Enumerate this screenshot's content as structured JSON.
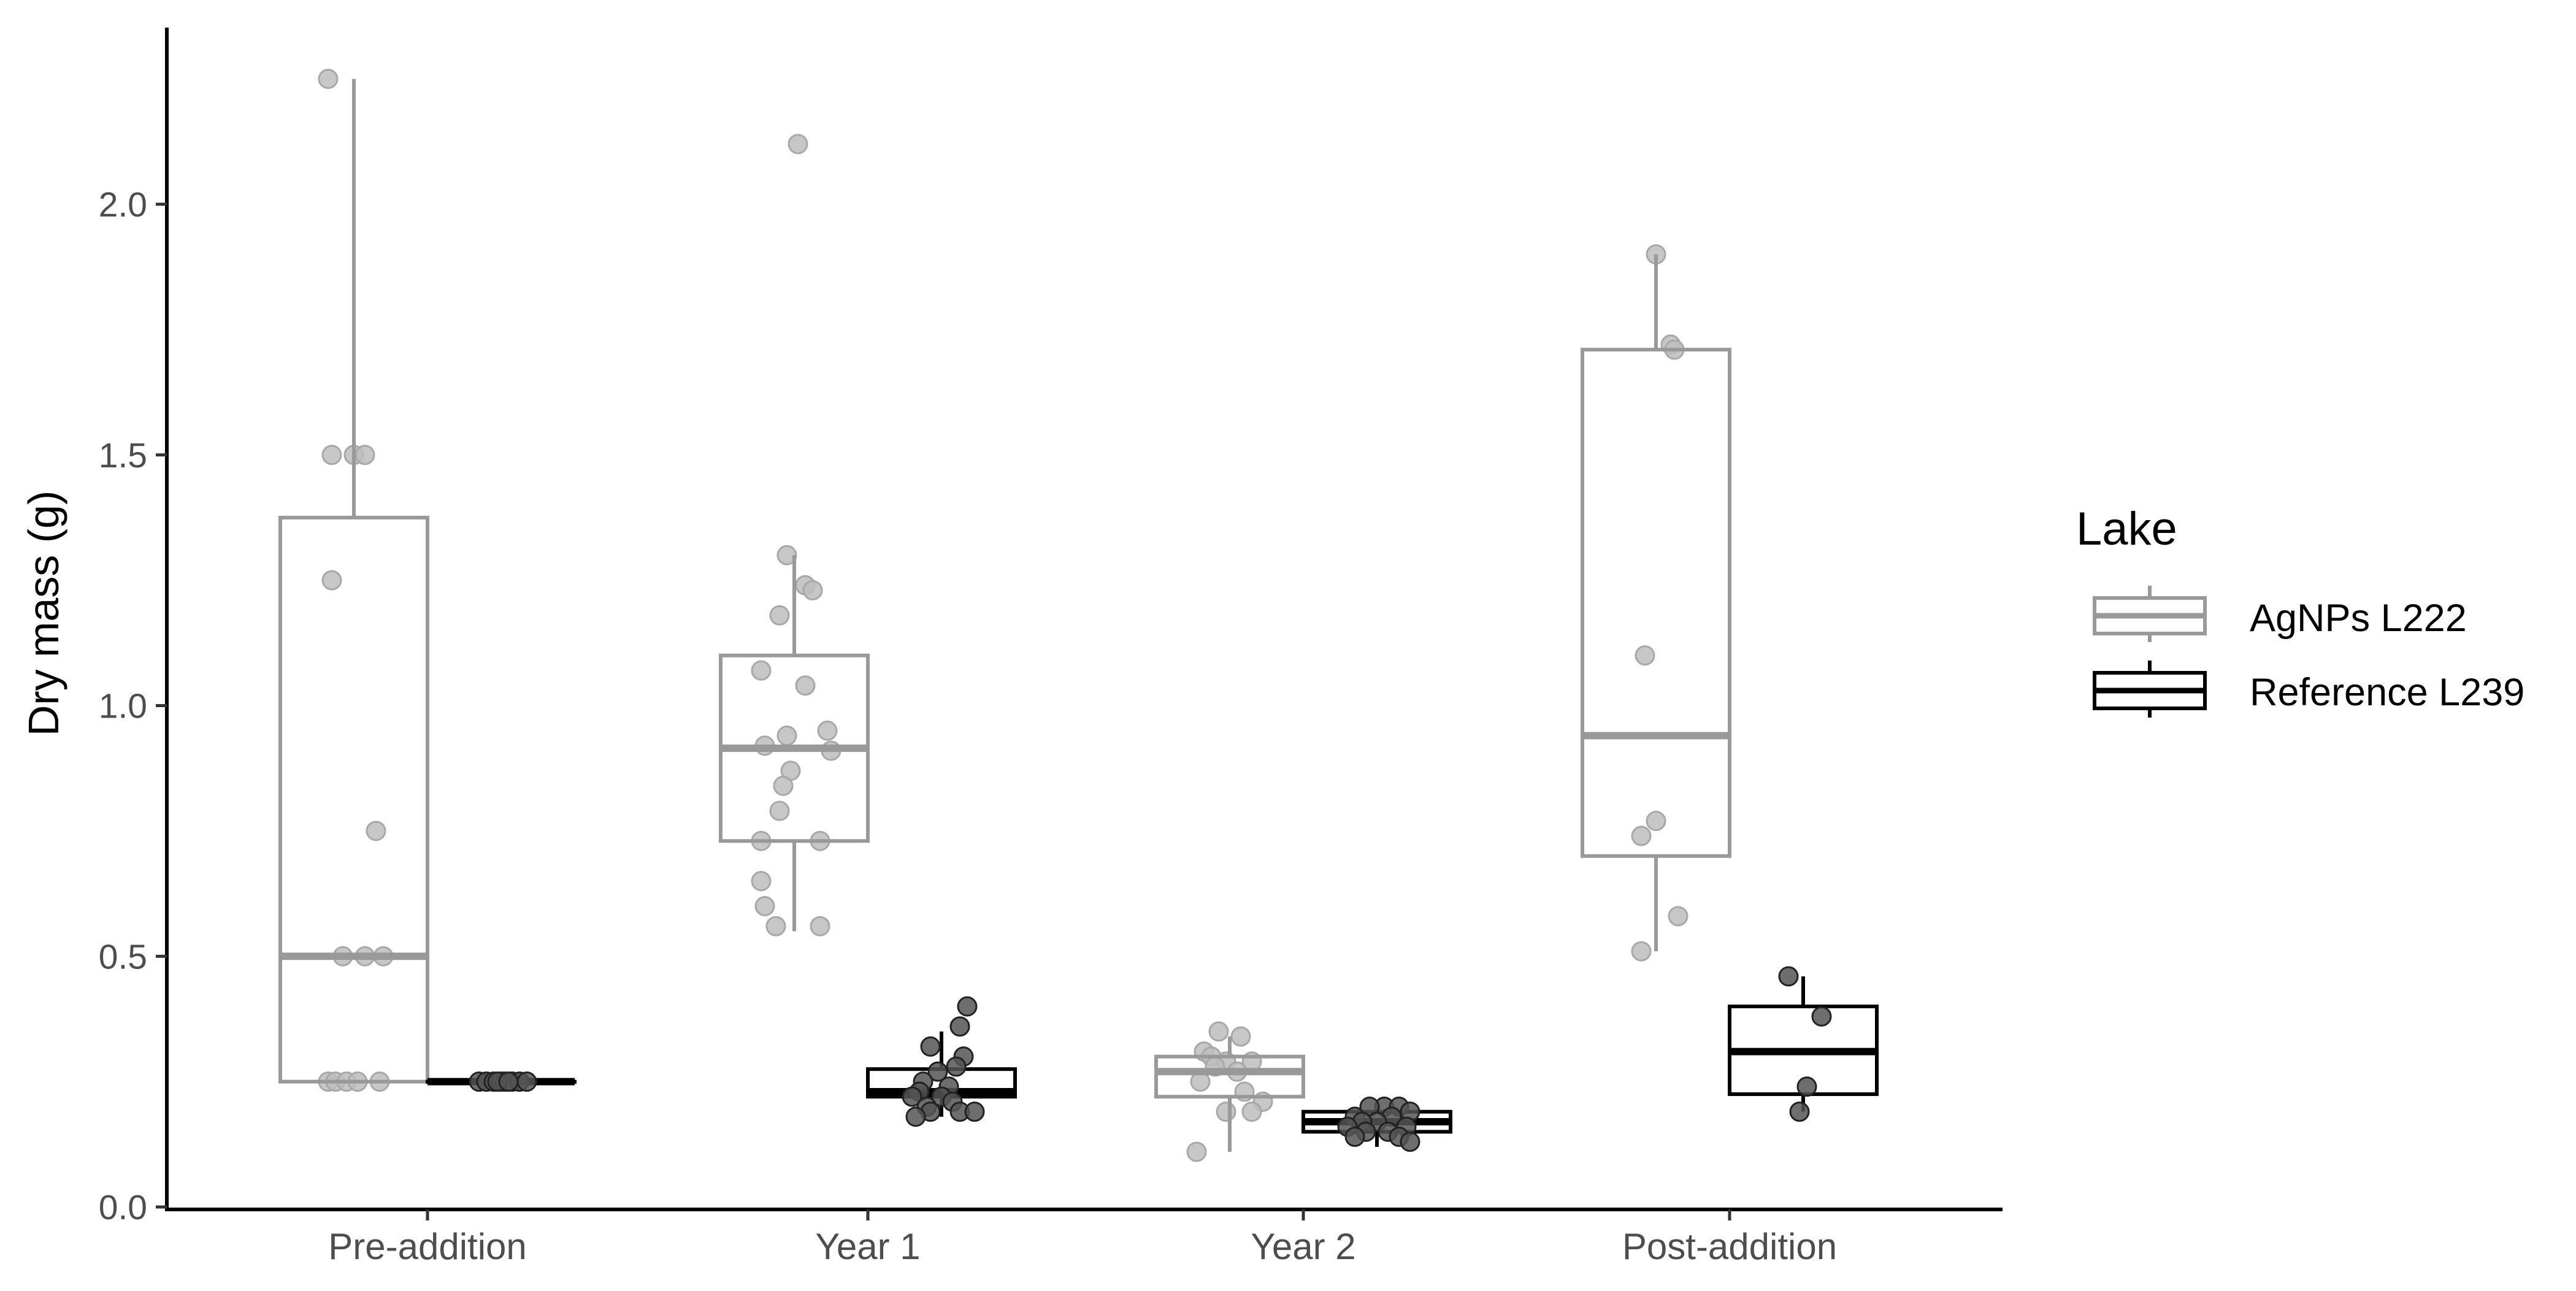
{
  "chart_data": {
    "type": "boxplot",
    "title": "",
    "xlabel": "",
    "ylabel": "Dry mass (g)",
    "ylim": [
      0,
      2.35
    ],
    "yticks": [
      "0.0",
      "0.5",
      "1.0",
      "1.5",
      "2.0"
    ],
    "ytick_values": [
      0,
      0.5,
      1.0,
      1.5,
      2.0
    ],
    "categories": [
      "Pre-addition",
      "Year 1",
      "Year 2",
      "Post-addition"
    ],
    "legend": {
      "title": "Lake",
      "placement": "right",
      "entries": [
        "AgNPs L222",
        "Reference L239"
      ]
    },
    "grid": false,
    "series": [
      {
        "name": "AgNPs L222",
        "color": "#999999",
        "point_color": "#bdbdbd",
        "boxes": [
          {
            "category": "Pre-addition",
            "q1": 0.25,
            "median": 0.5,
            "q3": 1.375,
            "whisker_low": 0.25,
            "whisker_high": 2.25,
            "points": [
              [
                -0.07,
                2.25
              ],
              [
                -0.06,
                1.5
              ],
              [
                0.0,
                1.5
              ],
              [
                0.03,
                1.5
              ],
              [
                -0.06,
                1.25
              ],
              [
                0.06,
                0.75
              ],
              [
                -0.03,
                0.5
              ],
              [
                0.03,
                0.5
              ],
              [
                0.08,
                0.5
              ],
              [
                -0.07,
                0.25
              ],
              [
                -0.05,
                0.25
              ],
              [
                -0.02,
                0.25
              ],
              [
                0.01,
                0.25
              ],
              [
                0.07,
                0.25
              ]
            ]
          },
          {
            "category": "Year 1",
            "q1": 0.73,
            "median": 0.915,
            "q3": 1.1,
            "whisker_low": 0.55,
            "whisker_high": 1.3,
            "points": [
              [
                0.01,
                2.12
              ],
              [
                -0.02,
                1.3
              ],
              [
                0.03,
                1.24
              ],
              [
                0.05,
                1.23
              ],
              [
                -0.04,
                1.18
              ],
              [
                -0.09,
                1.07
              ],
              [
                0.03,
                1.04
              ],
              [
                0.09,
                0.95
              ],
              [
                -0.02,
                0.94
              ],
              [
                -0.08,
                0.92
              ],
              [
                0.1,
                0.91
              ],
              [
                -0.01,
                0.87
              ],
              [
                -0.03,
                0.84
              ],
              [
                -0.04,
                0.79
              ],
              [
                -0.09,
                0.73
              ],
              [
                0.07,
                0.73
              ],
              [
                -0.09,
                0.65
              ],
              [
                -0.08,
                0.6
              ],
              [
                -0.05,
                0.56
              ],
              [
                0.07,
                0.56
              ]
            ]
          },
          {
            "category": "Year 2",
            "q1": 0.22,
            "median": 0.27,
            "q3": 0.3,
            "whisker_low": 0.11,
            "whisker_high": 0.34,
            "points": [
              [
                -0.03,
                0.35
              ],
              [
                0.03,
                0.34
              ],
              [
                -0.07,
                0.31
              ],
              [
                -0.05,
                0.3
              ],
              [
                -0.01,
                0.29
              ],
              [
                0.06,
                0.29
              ],
              [
                -0.04,
                0.28
              ],
              [
                0.02,
                0.27
              ],
              [
                -0.08,
                0.25
              ],
              [
                0.04,
                0.23
              ],
              [
                0.09,
                0.21
              ],
              [
                -0.01,
                0.19
              ],
              [
                0.06,
                0.19
              ],
              [
                -0.09,
                0.11
              ]
            ]
          },
          {
            "category": "Post-addition",
            "q1": 0.7,
            "median": 0.94,
            "q3": 1.71,
            "whisker_low": 0.51,
            "whisker_high": 1.9,
            "points": [
              [
                0.0,
                1.9
              ],
              [
                0.04,
                1.72
              ],
              [
                0.05,
                1.71
              ],
              [
                -0.03,
                1.1
              ],
              [
                0.0,
                0.77
              ],
              [
                -0.04,
                0.74
              ],
              [
                0.06,
                0.58
              ],
              [
                -0.04,
                0.51
              ]
            ]
          }
        ]
      },
      {
        "name": "Reference L239",
        "color": "#000000",
        "point_color": "#555555",
        "boxes": [
          {
            "category": "Pre-addition",
            "q1": 0.25,
            "median": 0.25,
            "q3": 0.25,
            "whisker_low": 0.25,
            "whisker_high": 0.25,
            "points": [
              [
                -0.06,
                0.25
              ],
              [
                -0.04,
                0.25
              ],
              [
                -0.02,
                0.25
              ],
              [
                0.0,
                0.25
              ],
              [
                0.01,
                0.25
              ],
              [
                0.03,
                0.25
              ],
              [
                0.05,
                0.25
              ],
              [
                0.07,
                0.25
              ],
              [
                -0.01,
                0.25
              ],
              [
                0.02,
                0.25
              ]
            ]
          },
          {
            "category": "Year 1",
            "q1": 0.22,
            "median": 0.23,
            "q3": 0.275,
            "whisker_low": 0.18,
            "whisker_high": 0.35,
            "points": [
              [
                0.07,
                0.4
              ],
              [
                0.05,
                0.36
              ],
              [
                -0.03,
                0.32
              ],
              [
                0.06,
                0.3
              ],
              [
                0.04,
                0.28
              ],
              [
                -0.01,
                0.27
              ],
              [
                -0.05,
                0.25
              ],
              [
                0.02,
                0.24
              ],
              [
                -0.06,
                0.23
              ],
              [
                0.0,
                0.22
              ],
              [
                -0.08,
                0.22
              ],
              [
                0.03,
                0.21
              ],
              [
                -0.04,
                0.2
              ],
              [
                0.05,
                0.19
              ],
              [
                0.09,
                0.19
              ],
              [
                -0.03,
                0.19
              ],
              [
                -0.07,
                0.18
              ]
            ]
          },
          {
            "category": "Year 2",
            "q1": 0.15,
            "median": 0.17,
            "q3": 0.19,
            "whisker_low": 0.12,
            "whisker_high": 0.2,
            "points": [
              [
                0.02,
                0.2
              ],
              [
                -0.02,
                0.2
              ],
              [
                0.06,
                0.2
              ],
              [
                0.09,
                0.19
              ],
              [
                -0.06,
                0.18
              ],
              [
                0.04,
                0.18
              ],
              [
                0.0,
                0.17
              ],
              [
                -0.04,
                0.17
              ],
              [
                0.08,
                0.16
              ],
              [
                -0.08,
                0.16
              ],
              [
                0.03,
                0.15
              ],
              [
                -0.03,
                0.15
              ],
              [
                0.06,
                0.14
              ],
              [
                -0.06,
                0.14
              ],
              [
                0.09,
                0.13
              ]
            ]
          },
          {
            "category": "Post-addition",
            "q1": 0.225,
            "median": 0.31,
            "q3": 0.4,
            "whisker_low": 0.19,
            "whisker_high": 0.46,
            "points": [
              [
                -0.04,
                0.46
              ],
              [
                0.05,
                0.38
              ],
              [
                0.01,
                0.24
              ],
              [
                -0.01,
                0.19
              ]
            ]
          }
        ]
      }
    ]
  }
}
